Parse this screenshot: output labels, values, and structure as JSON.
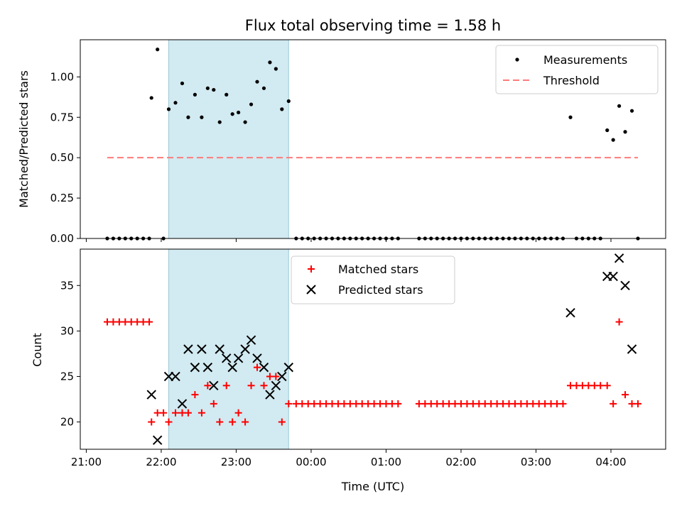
{
  "chart_data": [
    {
      "type": "scatter",
      "title": "Flux total observing time = 1.58 h",
      "xlabel": "",
      "ylabel": "Matched/Predicted stars",
      "ylim": [
        0,
        1.23
      ],
      "yticks": [
        "0.00",
        "0.25",
        "0.50",
        "0.75",
        "1.00"
      ],
      "legend_position": "top-right",
      "shaded_span_hours": [
        22.1,
        23.7
      ],
      "series": [
        {
          "name": "Measurements",
          "marker": "dot",
          "color": "#000000",
          "points": [
            [
              21.28,
              0
            ],
            [
              21.36,
              0
            ],
            [
              21.44,
              0
            ],
            [
              21.52,
              0
            ],
            [
              21.6,
              0
            ],
            [
              21.68,
              0
            ],
            [
              21.76,
              0
            ],
            [
              21.84,
              0
            ],
            [
              21.87,
              0.87
            ],
            [
              21.95,
              1.17
            ],
            [
              22.03,
              0
            ],
            [
              22.1,
              0.8
            ],
            [
              22.19,
              0.84
            ],
            [
              22.28,
              0.96
            ],
            [
              22.36,
              0.75
            ],
            [
              22.45,
              0.89
            ],
            [
              22.54,
              0.75
            ],
            [
              22.62,
              0.93
            ],
            [
              22.7,
              0.92
            ],
            [
              22.78,
              0.72
            ],
            [
              22.87,
              0.89
            ],
            [
              22.95,
              0.77
            ],
            [
              23.03,
              0.78
            ],
            [
              23.12,
              0.72
            ],
            [
              23.2,
              0.83
            ],
            [
              23.28,
              0.97
            ],
            [
              23.37,
              0.93
            ],
            [
              23.45,
              1.09
            ],
            [
              23.53,
              1.05
            ],
            [
              23.61,
              0.8
            ],
            [
              23.7,
              0.85
            ],
            [
              23.8,
              0
            ],
            [
              23.88,
              0
            ],
            [
              23.96,
              0
            ],
            [
              24.04,
              0
            ],
            [
              24.12,
              0
            ],
            [
              24.2,
              0
            ],
            [
              24.28,
              0
            ],
            [
              24.36,
              0
            ],
            [
              24.44,
              0
            ],
            [
              24.52,
              0
            ],
            [
              24.6,
              0
            ],
            [
              24.68,
              0
            ],
            [
              24.76,
              0
            ],
            [
              24.84,
              0
            ],
            [
              24.92,
              0
            ],
            [
              25.0,
              0
            ],
            [
              25.08,
              0
            ],
            [
              25.16,
              0
            ],
            [
              25.44,
              0
            ],
            [
              25.52,
              0
            ],
            [
              25.6,
              0
            ],
            [
              25.68,
              0
            ],
            [
              25.76,
              0
            ],
            [
              25.84,
              0
            ],
            [
              25.92,
              0
            ],
            [
              26.0,
              0
            ],
            [
              26.08,
              0
            ],
            [
              26.16,
              0
            ],
            [
              26.24,
              0
            ],
            [
              26.32,
              0
            ],
            [
              26.4,
              0
            ],
            [
              26.48,
              0
            ],
            [
              26.56,
              0
            ],
            [
              26.64,
              0
            ],
            [
              26.72,
              0
            ],
            [
              26.8,
              0
            ],
            [
              26.88,
              0
            ],
            [
              26.96,
              0
            ],
            [
              27.04,
              0
            ],
            [
              27.12,
              0
            ],
            [
              27.2,
              0
            ],
            [
              27.28,
              0
            ],
            [
              27.36,
              0
            ],
            [
              27.46,
              0.75
            ],
            [
              27.54,
              0
            ],
            [
              27.62,
              0
            ],
            [
              27.7,
              0
            ],
            [
              27.78,
              0
            ],
            [
              27.86,
              0
            ],
            [
              27.95,
              0.67
            ],
            [
              28.03,
              0.61
            ],
            [
              28.11,
              0.82
            ],
            [
              28.19,
              0.66
            ],
            [
              28.28,
              0.79
            ],
            [
              28.36,
              0
            ]
          ]
        },
        {
          "name": "Threshold",
          "style": "dashed-line",
          "color": "#ff7b7b",
          "points": [
            [
              21.28,
              0.5
            ],
            [
              28.36,
              0.5
            ]
          ]
        }
      ]
    },
    {
      "type": "scatter",
      "title": "",
      "xlabel": "Time (UTC)",
      "ylabel": "Count",
      "ylim": [
        17,
        39
      ],
      "yticks": [
        "20",
        "25",
        "30",
        "35"
      ],
      "xticks": [
        "21:00",
        "22:00",
        "23:00",
        "00:00",
        "01:00",
        "02:00",
        "03:00",
        "04:00"
      ],
      "xlim_hours": [
        20.92,
        28.73
      ],
      "legend_position": "top-center",
      "shaded_span_hours": [
        22.1,
        23.7
      ],
      "series": [
        {
          "name": "Matched stars",
          "marker": "plus",
          "color": "#ff0000",
          "points": [
            [
              21.28,
              31
            ],
            [
              21.36,
              31
            ],
            [
              21.44,
              31
            ],
            [
              21.52,
              31
            ],
            [
              21.6,
              31
            ],
            [
              21.68,
              31
            ],
            [
              21.76,
              31
            ],
            [
              21.84,
              31
            ],
            [
              21.87,
              20
            ],
            [
              21.95,
              21
            ],
            [
              22.03,
              21
            ],
            [
              22.1,
              20
            ],
            [
              22.19,
              21
            ],
            [
              22.28,
              21
            ],
            [
              22.36,
              21
            ],
            [
              22.45,
              23
            ],
            [
              22.54,
              21
            ],
            [
              22.62,
              24
            ],
            [
              22.7,
              22
            ],
            [
              22.78,
              20
            ],
            [
              22.87,
              24
            ],
            [
              22.95,
              20
            ],
            [
              23.03,
              21
            ],
            [
              23.12,
              20
            ],
            [
              23.2,
              24
            ],
            [
              23.28,
              26
            ],
            [
              23.37,
              24
            ],
            [
              23.45,
              25
            ],
            [
              23.53,
              25
            ],
            [
              23.61,
              20
            ],
            [
              23.7,
              22
            ],
            [
              23.8,
              22
            ],
            [
              23.88,
              22
            ],
            [
              23.96,
              22
            ],
            [
              24.04,
              22
            ],
            [
              24.12,
              22
            ],
            [
              24.2,
              22
            ],
            [
              24.28,
              22
            ],
            [
              24.36,
              22
            ],
            [
              24.44,
              22
            ],
            [
              24.52,
              22
            ],
            [
              24.6,
              22
            ],
            [
              24.68,
              22
            ],
            [
              24.76,
              22
            ],
            [
              24.84,
              22
            ],
            [
              24.92,
              22
            ],
            [
              25.0,
              22
            ],
            [
              25.08,
              22
            ],
            [
              25.16,
              22
            ],
            [
              25.44,
              22
            ],
            [
              25.52,
              22
            ],
            [
              25.6,
              22
            ],
            [
              25.68,
              22
            ],
            [
              25.76,
              22
            ],
            [
              25.84,
              22
            ],
            [
              25.92,
              22
            ],
            [
              26.0,
              22
            ],
            [
              26.08,
              22
            ],
            [
              26.16,
              22
            ],
            [
              26.24,
              22
            ],
            [
              26.32,
              22
            ],
            [
              26.4,
              22
            ],
            [
              26.48,
              22
            ],
            [
              26.56,
              22
            ],
            [
              26.64,
              22
            ],
            [
              26.72,
              22
            ],
            [
              26.8,
              22
            ],
            [
              26.88,
              22
            ],
            [
              26.96,
              22
            ],
            [
              27.04,
              22
            ],
            [
              27.12,
              22
            ],
            [
              27.2,
              22
            ],
            [
              27.28,
              22
            ],
            [
              27.36,
              22
            ],
            [
              27.46,
              24
            ],
            [
              27.54,
              24
            ],
            [
              27.62,
              24
            ],
            [
              27.7,
              24
            ],
            [
              27.78,
              24
            ],
            [
              27.86,
              24
            ],
            [
              27.95,
              24
            ],
            [
              28.03,
              22
            ],
            [
              28.11,
              31
            ],
            [
              28.19,
              23
            ],
            [
              28.28,
              22
            ],
            [
              28.36,
              22
            ]
          ]
        },
        {
          "name": "Predicted stars",
          "marker": "x",
          "color": "#000000",
          "points": [
            [
              21.87,
              23
            ],
            [
              21.95,
              18
            ],
            [
              22.1,
              25
            ],
            [
              22.19,
              25
            ],
            [
              22.28,
              22
            ],
            [
              22.36,
              28
            ],
            [
              22.45,
              26
            ],
            [
              22.54,
              28
            ],
            [
              22.62,
              26
            ],
            [
              22.7,
              24
            ],
            [
              22.78,
              28
            ],
            [
              22.87,
              27
            ],
            [
              22.95,
              26
            ],
            [
              23.03,
              27
            ],
            [
              23.12,
              28
            ],
            [
              23.2,
              29
            ],
            [
              23.28,
              27
            ],
            [
              23.37,
              26
            ],
            [
              23.45,
              23
            ],
            [
              23.53,
              24
            ],
            [
              23.61,
              25
            ],
            [
              23.7,
              26
            ],
            [
              27.46,
              32
            ],
            [
              27.95,
              36
            ],
            [
              28.03,
              36
            ],
            [
              28.11,
              38
            ],
            [
              28.19,
              35
            ],
            [
              28.28,
              28
            ]
          ]
        }
      ]
    }
  ]
}
